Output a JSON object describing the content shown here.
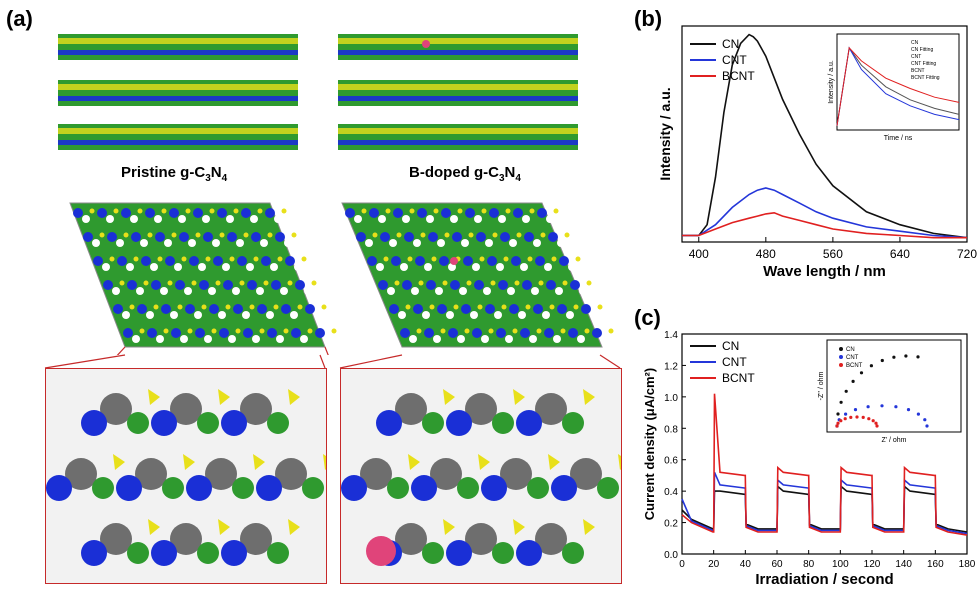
{
  "panel_a": {
    "label": "(a)",
    "caption_left": {
      "prefix": "Pristine g-C",
      "sub1": "3",
      "mid": "N",
      "sub2": "4"
    },
    "caption_right": {
      "prefix": "B-doped g-C",
      "sub1": "3",
      "mid": "N",
      "sub2": "4"
    },
    "colors": {
      "carbon": "#7a7a7a",
      "nitrogen": "#1a2fd6",
      "boron": "#e0447a",
      "iso_green": "#2f9a2f",
      "iso_yellow": "#e8e01a",
      "frame": "#c62a2a"
    }
  },
  "chart_data": [
    {
      "panel": "(b)",
      "type": "line",
      "xlabel": "Wave length / nm",
      "ylabel": "Intensity / a.u.",
      "xlim": [
        380,
        720
      ],
      "xticks": [
        400,
        480,
        560,
        640,
        720
      ],
      "legend_position": "top-left",
      "series": [
        {
          "name": "CN",
          "color": "#111111",
          "x": [
            380,
            400,
            410,
            420,
            430,
            440,
            450,
            460,
            465,
            470,
            480,
            490,
            500,
            520,
            540,
            560,
            600,
            640,
            680,
            720
          ],
          "y": [
            0.03,
            0.03,
            0.08,
            0.3,
            0.6,
            0.82,
            0.92,
            0.96,
            0.95,
            0.93,
            0.86,
            0.76,
            0.66,
            0.5,
            0.36,
            0.26,
            0.14,
            0.08,
            0.04,
            0.02
          ]
        },
        {
          "name": "CNT",
          "color": "#2436d9",
          "x": [
            380,
            400,
            420,
            440,
            460,
            470,
            480,
            490,
            500,
            520,
            540,
            560,
            600,
            640,
            680,
            720
          ],
          "y": [
            0.03,
            0.03,
            0.08,
            0.16,
            0.22,
            0.24,
            0.25,
            0.24,
            0.22,
            0.18,
            0.14,
            0.11,
            0.07,
            0.05,
            0.03,
            0.02
          ]
        },
        {
          "name": "BCNT",
          "color": "#e02020",
          "x": [
            380,
            400,
            420,
            440,
            460,
            470,
            480,
            490,
            500,
            520,
            540,
            560,
            600,
            640,
            680,
            720
          ],
          "y": [
            0.03,
            0.03,
            0.06,
            0.09,
            0.11,
            0.12,
            0.13,
            0.135,
            0.12,
            0.1,
            0.08,
            0.06,
            0.04,
            0.03,
            0.02,
            0.02
          ]
        }
      ],
      "inset": {
        "type": "line",
        "xlabel": "Time / ns",
        "ylabel": "Intensity / a.u.",
        "legend": [
          "CN",
          "CN Fitting",
          "CNT",
          "CNT Fitting",
          "BCNT",
          "BCNT Fitting"
        ],
        "series": [
          {
            "name": "CN",
            "color": "#555555",
            "x": [
              0,
              5,
              10,
              20,
              40,
              60,
              80,
              100
            ],
            "y": [
              0.05,
              0.5,
              0.95,
              0.75,
              0.5,
              0.35,
              0.25,
              0.18
            ]
          },
          {
            "name": "CNT",
            "color": "#2436d9",
            "x": [
              0,
              5,
              10,
              20,
              40,
              60,
              80,
              100
            ],
            "y": [
              0.05,
              0.5,
              0.95,
              0.7,
              0.42,
              0.28,
              0.18,
              0.12
            ]
          },
          {
            "name": "BCNT",
            "color": "#e02020",
            "x": [
              0,
              5,
              10,
              20,
              40,
              60,
              80,
              100
            ],
            "y": [
              0.05,
              0.5,
              0.95,
              0.8,
              0.6,
              0.48,
              0.38,
              0.32
            ]
          }
        ]
      }
    },
    {
      "panel": "(c)",
      "type": "line",
      "xlabel": "Irradiation / second",
      "ylabel": "Current density (μA/cm²)",
      "xlim": [
        0,
        180
      ],
      "ylim": [
        0.0,
        1.4
      ],
      "xticks": [
        0,
        20,
        40,
        60,
        80,
        100,
        120,
        140,
        160,
        180
      ],
      "yticks": [
        0.0,
        0.2,
        0.4,
        0.6,
        0.8,
        1.0,
        1.2,
        1.4
      ],
      "legend_position": "top-left",
      "series": [
        {
          "name": "CN",
          "color": "#111111",
          "on_level": 0.38,
          "off_level": 0.16,
          "spike": 0.4,
          "start": 0.28
        },
        {
          "name": "CNT",
          "color": "#2436d9",
          "on_level": 0.42,
          "off_level": 0.15,
          "spike": 0.52,
          "start": 0.35
        },
        {
          "name": "BCNT",
          "color": "#e02020",
          "on_level": 0.5,
          "off_level": 0.14,
          "spike": 1.02,
          "start": 0.25
        }
      ],
      "on_intervals": [
        [
          20,
          40
        ],
        [
          60,
          80
        ],
        [
          100,
          120
        ],
        [
          140,
          160
        ]
      ],
      "inset": {
        "type": "scatter",
        "xlabel": "Z' / ohm",
        "ylabel": "-Z'' / ohm",
        "legend": [
          "CN",
          "CNT",
          "BCNT"
        ]
      }
    }
  ]
}
